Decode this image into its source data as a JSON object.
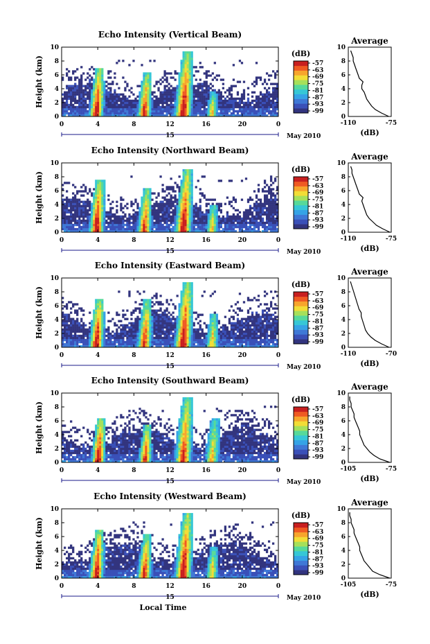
{
  "colors": [
    "#32347e",
    "#3a50b8",
    "#3f78d6",
    "#35a3e6",
    "#36c7d6",
    "#56d99a",
    "#a6e05a",
    "#f2dd36",
    "#f7a52c",
    "#ef5a22",
    "#c81f1f"
  ],
  "chart_data": [
    {
      "type": "heatmap",
      "title": "Echo Intensity (Vertical Beam)",
      "ylabel": "Height (km)",
      "xlabel": "",
      "colorbar_label": "(dB)",
      "colorbar_ticks": [
        "-57",
        "-63",
        "-69",
        "-75",
        "-81",
        "-87",
        "-93",
        "-99"
      ],
      "x_ticks": [
        "0",
        "4",
        "8",
        "12",
        "16",
        "20",
        "0"
      ],
      "x_range": [
        0,
        24
      ],
      "y_ticks": [
        "0",
        "2",
        "4",
        "6",
        "8",
        "10"
      ],
      "y_range": [
        0,
        10
      ],
      "date_label": "15",
      "month_label": "May 2010",
      "convection_events": [
        {
          "time": 4.0,
          "top_km": 7.0,
          "peak_dB": -57
        },
        {
          "time": 9.3,
          "top_km": 6.5,
          "peak_dB": -63
        },
        {
          "time": 13.6,
          "top_km": 9.5,
          "peak_dB": -57
        },
        {
          "time": 16.8,
          "top_km": 3.5,
          "peak_dB": -75
        }
      ],
      "profile": {
        "title": "Average",
        "xlabel": "(dB)",
        "x_ticks": [
          "-110",
          "-75"
        ],
        "x_range": [
          -110,
          -75
        ],
        "y_ticks": [
          "0",
          "2",
          "4",
          "6",
          "8",
          "10"
        ],
        "height_km": [
          0,
          0.5,
          1,
          1.5,
          2,
          2.5,
          3,
          3.5,
          4,
          4.5,
          5,
          5.5,
          6,
          6.5,
          7,
          7.5,
          8,
          8.5,
          9,
          9.5
        ],
        "dB": [
          -77,
          -83,
          -88,
          -91,
          -93,
          -95,
          -96,
          -97,
          -99,
          -99,
          -98,
          -101,
          -102,
          -103,
          -104,
          -105,
          -106,
          -106,
          -107,
          -108
        ]
      }
    },
    {
      "type": "heatmap",
      "title": "Echo Intensity (Northward Beam)",
      "ylabel": "Height (km)",
      "xlabel": "",
      "colorbar_label": "(dB)",
      "colorbar_ticks": [
        "-57",
        "-63",
        "-69",
        "-75",
        "-81",
        "-87",
        "-93",
        "-99"
      ],
      "x_ticks": [
        "0",
        "4",
        "8",
        "12",
        "16",
        "20",
        "0"
      ],
      "x_range": [
        0,
        24
      ],
      "y_ticks": [
        "0",
        "2",
        "4",
        "6",
        "8",
        "10"
      ],
      "y_range": [
        0,
        10
      ],
      "date_label": "15",
      "month_label": "May 2010",
      "convection_events": [
        {
          "time": 4.0,
          "top_km": 7.5,
          "peak_dB": -57
        },
        {
          "time": 9.3,
          "top_km": 6.5,
          "peak_dB": -63
        },
        {
          "time": 13.6,
          "top_km": 9.0,
          "peak_dB": -57
        },
        {
          "time": 16.8,
          "top_km": 4.0,
          "peak_dB": -75
        }
      ],
      "profile": {
        "title": "Average",
        "xlabel": "(dB)",
        "x_ticks": [
          "-110",
          "-75"
        ],
        "x_range": [
          -110,
          -75
        ],
        "y_ticks": [
          "0",
          "2",
          "4",
          "6",
          "8",
          "10"
        ],
        "height_km": [
          0,
          0.5,
          1,
          1.5,
          2,
          2.5,
          3,
          3.5,
          4,
          4.5,
          5,
          5.5,
          6,
          6.5,
          7,
          7.5,
          8,
          8.5,
          9,
          9.5
        ],
        "dB": [
          -76,
          -82,
          -87,
          -90,
          -93,
          -95,
          -96,
          -97,
          -98,
          -99,
          -98,
          -101,
          -102,
          -103,
          -104,
          -105,
          -106,
          -107,
          -107,
          -108
        ]
      }
    },
    {
      "type": "heatmap",
      "title": "Echo Intensity (Eastward Beam)",
      "ylabel": "Height (km)",
      "xlabel": "",
      "colorbar_label": "(dB)",
      "colorbar_ticks": [
        "-57",
        "-63",
        "-69",
        "-75",
        "-81",
        "-87",
        "-93",
        "-99"
      ],
      "x_ticks": [
        "0",
        "4",
        "8",
        "12",
        "16",
        "20",
        "0"
      ],
      "x_range": [
        0,
        24
      ],
      "y_ticks": [
        "0",
        "2",
        "4",
        "6",
        "8",
        "10"
      ],
      "y_range": [
        0,
        10
      ],
      "date_label": "15",
      "month_label": "May 2010",
      "convection_events": [
        {
          "time": 4.0,
          "top_km": 7.0,
          "peak_dB": -57
        },
        {
          "time": 9.3,
          "top_km": 7.0,
          "peak_dB": -63
        },
        {
          "time": 13.6,
          "top_km": 9.5,
          "peak_dB": -57
        },
        {
          "time": 16.8,
          "top_km": 5.0,
          "peak_dB": -75
        }
      ],
      "profile": {
        "title": "Average",
        "xlabel": "(dB)",
        "x_ticks": [
          "-110",
          "-70"
        ],
        "x_range": [
          -110,
          -70
        ],
        "y_ticks": [
          "0",
          "2",
          "4",
          "6",
          "8",
          "10"
        ],
        "height_km": [
          0,
          0.5,
          1,
          1.5,
          2,
          2.5,
          3,
          3.5,
          4,
          4.5,
          5,
          5.5,
          6,
          6.5,
          7,
          7.5,
          8,
          8.5,
          9,
          9.5
        ],
        "dB": [
          -72,
          -79,
          -85,
          -89,
          -92,
          -94,
          -95,
          -96,
          -97,
          -98,
          -98,
          -100,
          -101,
          -102,
          -103,
          -104,
          -105,
          -106,
          -107,
          -108
        ]
      }
    },
    {
      "type": "heatmap",
      "title": "Echo Intensity (Southward Beam)",
      "ylabel": "Height (km)",
      "xlabel": "",
      "colorbar_label": "(dB)",
      "colorbar_ticks": [
        "-57",
        "-63",
        "-69",
        "-75",
        "-81",
        "-87",
        "-93",
        "-99"
      ],
      "x_ticks": [
        "0",
        "4",
        "8",
        "12",
        "16",
        "20",
        "0"
      ],
      "x_range": [
        0,
        24
      ],
      "y_ticks": [
        "0",
        "2",
        "4",
        "6",
        "8",
        "10"
      ],
      "y_range": [
        0,
        10
      ],
      "date_label": "15",
      "month_label": "May 2010",
      "convection_events": [
        {
          "time": 4.2,
          "top_km": 6.5,
          "peak_dB": -57
        },
        {
          "time": 9.4,
          "top_km": 5.5,
          "peak_dB": -63
        },
        {
          "time": 13.6,
          "top_km": 9.5,
          "peak_dB": -63
        },
        {
          "time": 16.8,
          "top_km": 6.5,
          "peak_dB": -75
        }
      ],
      "profile": {
        "title": "Average",
        "xlabel": "(dB)",
        "x_ticks": [
          "-105",
          "-75"
        ],
        "x_range": [
          -105,
          -75
        ],
        "y_ticks": [
          "0",
          "2",
          "4",
          "6",
          "8",
          "10"
        ],
        "height_km": [
          0,
          0.5,
          1,
          1.5,
          2,
          2.5,
          3,
          3.5,
          4,
          4.5,
          5,
          5.5,
          6,
          6.5,
          7,
          7.5,
          8,
          8.5,
          9,
          9.5
        ],
        "dB": [
          -76,
          -83,
          -87,
          -90,
          -92,
          -94,
          -95,
          -96,
          -97,
          -97,
          -98,
          -99,
          -100,
          -101,
          -101,
          -102,
          -103,
          -103,
          -104,
          -104
        ]
      }
    },
    {
      "type": "heatmap",
      "title": "Echo Intensity (Westward Beam)",
      "ylabel": "Height (km)",
      "xlabel": "Local Time",
      "colorbar_label": "(dB)",
      "colorbar_ticks": [
        "-57",
        "-63",
        "-69",
        "-75",
        "-81",
        "-87",
        "-93",
        "-99"
      ],
      "x_ticks": [
        "0",
        "4",
        "8",
        "12",
        "16",
        "20",
        "0"
      ],
      "x_range": [
        0,
        24
      ],
      "y_ticks": [
        "0",
        "2",
        "4",
        "6",
        "8",
        "10"
      ],
      "y_range": [
        0,
        10
      ],
      "date_label": "15",
      "month_label": "May 2010",
      "convection_events": [
        {
          "time": 4.0,
          "top_km": 7.0,
          "peak_dB": -57
        },
        {
          "time": 9.3,
          "top_km": 6.5,
          "peak_dB": -63
        },
        {
          "time": 13.6,
          "top_km": 9.5,
          "peak_dB": -57
        },
        {
          "time": 16.8,
          "top_km": 4.5,
          "peak_dB": -75
        }
      ],
      "profile": {
        "title": "Average",
        "xlabel": "(dB)",
        "x_ticks": [
          "-105",
          "-75"
        ],
        "x_range": [
          -105,
          -75
        ],
        "y_ticks": [
          "0",
          "2",
          "4",
          "6",
          "8",
          "10"
        ],
        "height_km": [
          0,
          0.5,
          1,
          1.5,
          2,
          2.5,
          3,
          3.5,
          4,
          4.5,
          5,
          5.5,
          6,
          6.5,
          7,
          7.5,
          8,
          8.5,
          9,
          9.5
        ],
        "dB": [
          -76,
          -83,
          -88,
          -90,
          -92,
          -94,
          -95,
          -96,
          -97,
          -97,
          -98,
          -99,
          -100,
          -101,
          -101,
          -102,
          -103,
          -103,
          -104,
          -104
        ]
      }
    }
  ]
}
